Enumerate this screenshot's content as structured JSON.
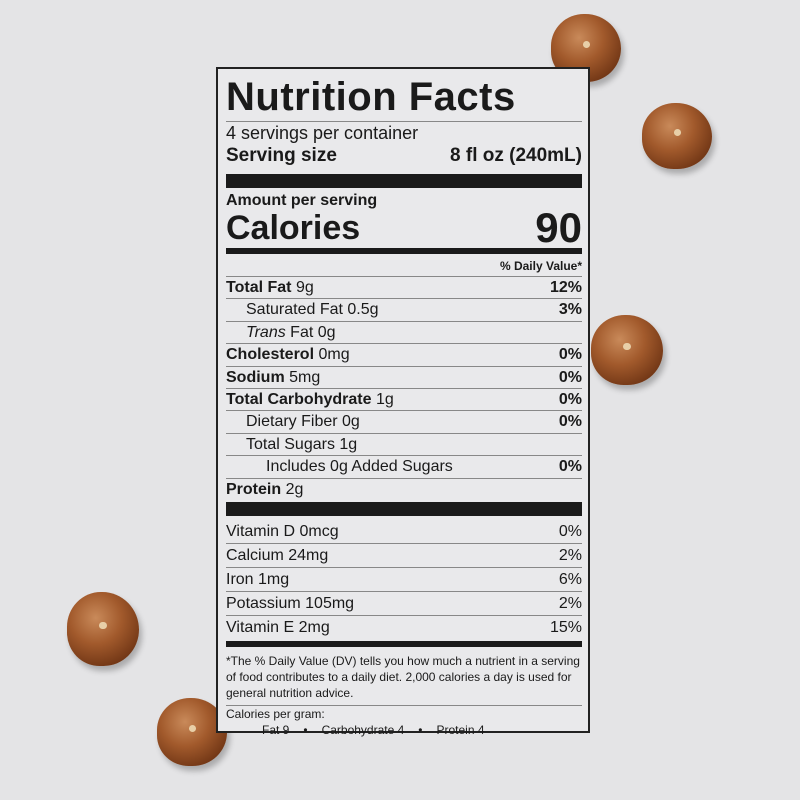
{
  "label": {
    "title": "Nutrition Facts",
    "servings": "4 servings per container",
    "serving_size_label": "Serving size",
    "serving_size_value": "8 fl oz (240mL)",
    "amount_per_serving": "Amount per serving",
    "calories_label": "Calories",
    "calories_value": "90",
    "dv_header": "% Daily Value*",
    "nutrients": [
      {
        "name": "Total Fat",
        "amount": "9g",
        "dv": "12%"
      },
      {
        "name": "Saturated Fat",
        "amount": "0.5g",
        "dv": "3%"
      },
      {
        "name": "Trans",
        "amount": "Fat 0g",
        "dv": ""
      },
      {
        "name": "Cholesterol",
        "amount": "0mg",
        "dv": "0%"
      },
      {
        "name": "Sodium",
        "amount": "5mg",
        "dv": "0%"
      },
      {
        "name": "Total Carbohydrate",
        "amount": "1g",
        "dv": "0%"
      },
      {
        "name": "Dietary Fiber",
        "amount": "0g",
        "dv": "0%"
      },
      {
        "name": "Total Sugars",
        "amount": "1g",
        "dv": ""
      },
      {
        "name": "Includes 0g Added Sugars",
        "amount": "",
        "dv": "0%"
      },
      {
        "name": "Protein",
        "amount": "2g",
        "dv": ""
      }
    ],
    "vitamins": [
      {
        "name": "Vitamin D 0mcg",
        "dv": "0%"
      },
      {
        "name": "Calcium 24mg",
        "dv": "2%"
      },
      {
        "name": "Iron 1mg",
        "dv": "6%"
      },
      {
        "name": "Potassium 105mg",
        "dv": "2%"
      },
      {
        "name": "Vitamin E 2mg",
        "dv": "15%"
      }
    ],
    "footnote": "*The % Daily Value (DV) tells you how much a nutrient in a serving of food contributes to a daily diet. 2,000 calories a day is used for general nutrition advice.",
    "calories_per_gram_label": "Calories per gram:",
    "calories_per_gram": [
      "Fat 9",
      "Carbohydrate 4",
      "Protein 4"
    ],
    "bullet": "•"
  },
  "colors": {
    "background": "#e4e4e6",
    "ink": "#1a1a1a",
    "hazelnut": "#a25a2c"
  }
}
